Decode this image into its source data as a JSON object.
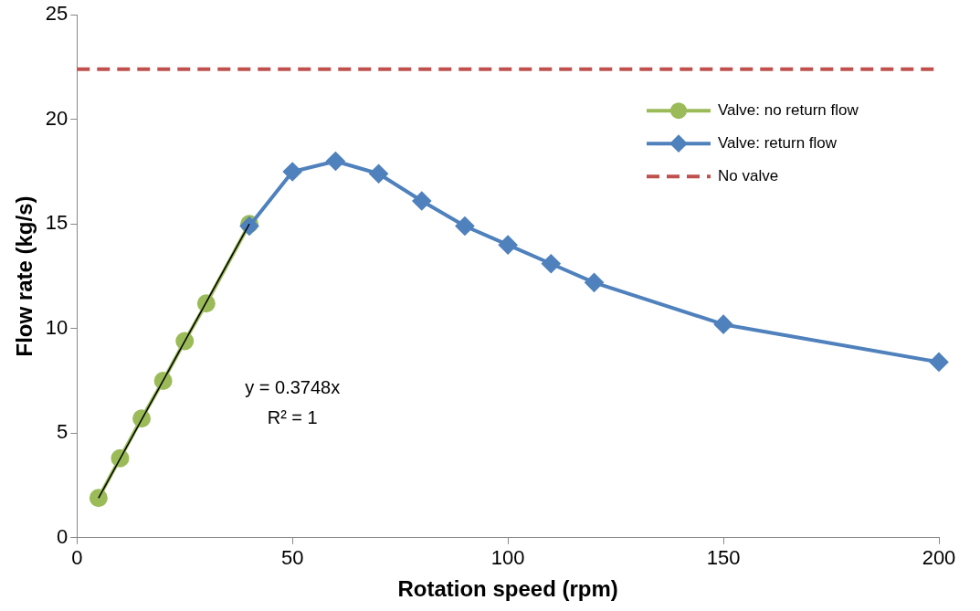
{
  "chart_data": {
    "type": "line",
    "xlabel": "Rotation speed (rpm)",
    "ylabel": "Flow rate (kg/s)",
    "xlim": [
      0,
      200
    ],
    "xticks": [
      0,
      50,
      100,
      150,
      200
    ],
    "ylim": [
      0,
      25
    ],
    "yticks": [
      0,
      5,
      10,
      15,
      20,
      25
    ],
    "legend": "top right",
    "series": [
      {
        "name": "Valve: no return flow",
        "color": "#9bbb59",
        "marker": "circle",
        "x": [
          5,
          10,
          15,
          20,
          25,
          30,
          40
        ],
        "values": [
          1.9,
          3.8,
          5.7,
          7.5,
          9.4,
          11.2,
          15.0
        ]
      },
      {
        "name": "Valve: return flow",
        "color": "#4f81bd",
        "marker": "diamond",
        "x": [
          40,
          50,
          60,
          70,
          80,
          90,
          100,
          110,
          120,
          150,
          200
        ],
        "values": [
          14.9,
          17.5,
          18.0,
          17.4,
          16.1,
          14.9,
          14.0,
          13.1,
          12.2,
          10.2,
          8.4
        ]
      },
      {
        "name": "No valve",
        "color": "#c0504d",
        "marker": "none",
        "line_style": "dashed",
        "x": [
          0,
          200
        ],
        "values": [
          22.4,
          22.4
        ]
      },
      {
        "color": "#000000",
        "marker": "none",
        "x": [
          5,
          40
        ],
        "values": [
          1.9,
          15.0
        ]
      }
    ],
    "annotations": [
      "y = 0.3748x",
      "R² = 1"
    ]
  }
}
